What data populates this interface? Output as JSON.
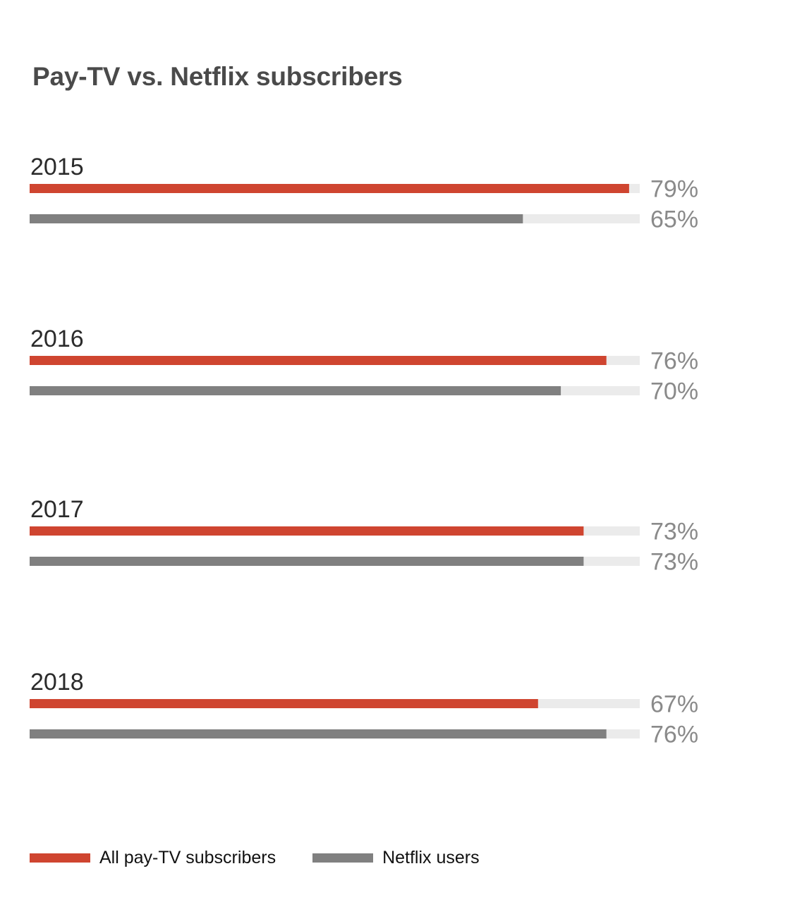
{
  "chart_title": "Pay-TV vs. Netflix subscribers",
  "colors": {
    "pay_tv": "#cf4530",
    "netflix": "#808080",
    "track": "#ebebeb",
    "year_label": "#2b2b2b",
    "value_label": "#8a8a8a"
  },
  "legend": {
    "pay_tv_label": "All pay-TV subscribers",
    "netflix_label": "Netflix users"
  },
  "chart_data": {
    "type": "bar",
    "orientation": "horizontal",
    "title": "Pay-TV vs. Netflix subscribers",
    "categories": [
      "2015",
      "2016",
      "2017",
      "2018"
    ],
    "series": [
      {
        "name": "All pay-TV subscribers",
        "values": [
          79,
          76,
          73,
          67
        ]
      },
      {
        "name": "Netflix users",
        "values": [
          65,
          70,
          73,
          76
        ]
      }
    ],
    "value_labels": [
      [
        "79%",
        "65%"
      ],
      [
        "76%",
        "70%"
      ],
      [
        "73%",
        "73%"
      ],
      [
        "67%",
        "76%"
      ]
    ],
    "unit": "%",
    "xlim": [
      0,
      80.4
    ],
    "grid": false,
    "legend_position": "bottom-left"
  }
}
